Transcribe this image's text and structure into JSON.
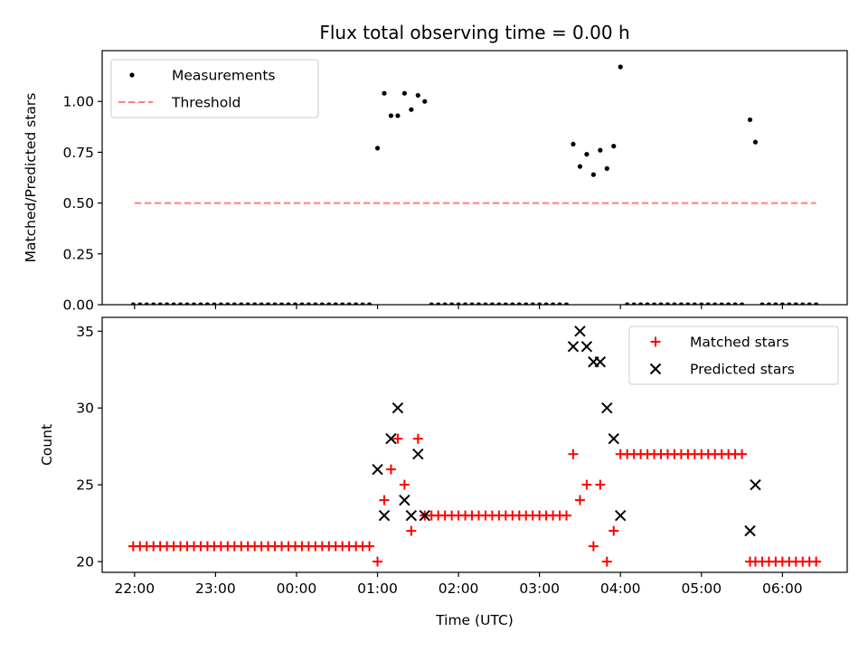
{
  "title": "Flux total observing time = 0.00 h",
  "chart_data": [
    {
      "type": "scatter",
      "ylabel": "Matched/Predicted stars",
      "xlim": [
        "21:36",
        "06:48"
      ],
      "ylim": [
        0,
        1.25
      ],
      "yticks": [
        0,
        0.25,
        0.5,
        0.75,
        1.0
      ],
      "ytick_labels": [
        "0.00",
        "0.25",
        "0.50",
        "0.75",
        "1.00"
      ],
      "legend_placement": "upper-left",
      "series": [
        {
          "name": "Measurements",
          "marker": "dot",
          "color": "#000000",
          "points": [
            [
              "21:59",
              0
            ],
            [
              "22:04",
              0
            ],
            [
              "22:09",
              0
            ],
            [
              "22:14",
              0
            ],
            [
              "22:19",
              0
            ],
            [
              "22:24",
              0
            ],
            [
              "22:29",
              0
            ],
            [
              "22:34",
              0
            ],
            [
              "22:39",
              0
            ],
            [
              "22:44",
              0
            ],
            [
              "22:49",
              0
            ],
            [
              "22:54",
              0
            ],
            [
              "22:59",
              0
            ],
            [
              "23:04",
              0
            ],
            [
              "23:09",
              0
            ],
            [
              "23:14",
              0
            ],
            [
              "23:19",
              0
            ],
            [
              "23:24",
              0
            ],
            [
              "23:29",
              0
            ],
            [
              "23:34",
              0
            ],
            [
              "23:39",
              0
            ],
            [
              "23:44",
              0
            ],
            [
              "23:49",
              0
            ],
            [
              "23:54",
              0
            ],
            [
              "23:59",
              0
            ],
            [
              "00:04",
              0
            ],
            [
              "00:09",
              0
            ],
            [
              "00:14",
              0
            ],
            [
              "00:19",
              0
            ],
            [
              "00:24",
              0
            ],
            [
              "00:29",
              0
            ],
            [
              "00:34",
              0
            ],
            [
              "00:39",
              0
            ],
            [
              "00:44",
              0
            ],
            [
              "00:49",
              0
            ],
            [
              "00:54",
              0
            ],
            [
              "01:00",
              0.77
            ],
            [
              "01:05",
              1.04
            ],
            [
              "01:10",
              0.93
            ],
            [
              "01:15",
              0.93
            ],
            [
              "01:20",
              1.04
            ],
            [
              "01:25",
              0.96
            ],
            [
              "01:30",
              1.03
            ],
            [
              "01:35",
              1.0
            ],
            [
              "01:40",
              0
            ],
            [
              "01:45",
              0
            ],
            [
              "01:50",
              0
            ],
            [
              "01:55",
              0
            ],
            [
              "02:00",
              0
            ],
            [
              "02:05",
              0
            ],
            [
              "02:10",
              0
            ],
            [
              "02:15",
              0
            ],
            [
              "02:20",
              0
            ],
            [
              "02:25",
              0
            ],
            [
              "02:30",
              0
            ],
            [
              "02:35",
              0
            ],
            [
              "02:40",
              0
            ],
            [
              "02:45",
              0
            ],
            [
              "02:50",
              0
            ],
            [
              "02:55",
              0
            ],
            [
              "03:00",
              0
            ],
            [
              "03:05",
              0
            ],
            [
              "03:10",
              0
            ],
            [
              "03:15",
              0
            ],
            [
              "03:20",
              0
            ],
            [
              "03:25",
              0.79
            ],
            [
              "03:30",
              0.68
            ],
            [
              "03:35",
              0.74
            ],
            [
              "03:40",
              0.64
            ],
            [
              "03:45",
              0.76
            ],
            [
              "03:50",
              0.67
            ],
            [
              "03:55",
              0.78
            ],
            [
              "04:00",
              1.17
            ],
            [
              "04:05",
              0
            ],
            [
              "04:10",
              0
            ],
            [
              "04:15",
              0
            ],
            [
              "04:20",
              0
            ],
            [
              "04:25",
              0
            ],
            [
              "04:30",
              0
            ],
            [
              "04:35",
              0
            ],
            [
              "04:40",
              0
            ],
            [
              "04:45",
              0
            ],
            [
              "04:50",
              0
            ],
            [
              "04:55",
              0
            ],
            [
              "05:00",
              0
            ],
            [
              "05:05",
              0
            ],
            [
              "05:10",
              0
            ],
            [
              "05:15",
              0
            ],
            [
              "05:20",
              0
            ],
            [
              "05:25",
              0
            ],
            [
              "05:30",
              0
            ],
            [
              "05:36",
              0.91
            ],
            [
              "05:40",
              0.8
            ],
            [
              "05:45",
              0
            ],
            [
              "05:50",
              0
            ],
            [
              "05:55",
              0
            ],
            [
              "06:00",
              0
            ],
            [
              "06:05",
              0
            ],
            [
              "06:10",
              0
            ],
            [
              "06:15",
              0
            ],
            [
              "06:20",
              0
            ],
            [
              "06:25",
              0
            ]
          ]
        },
        {
          "name": "Threshold",
          "type": "line",
          "style": "dashed",
          "color": "#ff7f7f",
          "points": [
            [
              "22:00",
              0.5
            ],
            [
              "06:25",
              0.5
            ]
          ]
        }
      ]
    },
    {
      "type": "scatter",
      "xlabel": "Time (UTC)",
      "ylabel": "Count",
      "xlim": [
        "21:36",
        "06:48"
      ],
      "ylim": [
        19.3,
        35.9
      ],
      "yticks": [
        20,
        25,
        30,
        35
      ],
      "ytick_labels": [
        "20",
        "25",
        "30",
        "35"
      ],
      "xticks": [
        "22:00",
        "23:00",
        "00:00",
        "01:00",
        "02:00",
        "03:00",
        "04:00",
        "05:00",
        "06:00"
      ],
      "legend_placement": "upper-right",
      "series": [
        {
          "name": "Matched stars",
          "marker": "plus",
          "color": "#ff0000",
          "points": [
            [
              "21:59",
              21
            ],
            [
              "22:04",
              21
            ],
            [
              "22:09",
              21
            ],
            [
              "22:14",
              21
            ],
            [
              "22:19",
              21
            ],
            [
              "22:24",
              21
            ],
            [
              "22:29",
              21
            ],
            [
              "22:34",
              21
            ],
            [
              "22:39",
              21
            ],
            [
              "22:44",
              21
            ],
            [
              "22:49",
              21
            ],
            [
              "22:54",
              21
            ],
            [
              "22:59",
              21
            ],
            [
              "23:04",
              21
            ],
            [
              "23:09",
              21
            ],
            [
              "23:14",
              21
            ],
            [
              "23:19",
              21
            ],
            [
              "23:24",
              21
            ],
            [
              "23:29",
              21
            ],
            [
              "23:34",
              21
            ],
            [
              "23:39",
              21
            ],
            [
              "23:44",
              21
            ],
            [
              "23:49",
              21
            ],
            [
              "23:54",
              21
            ],
            [
              "23:59",
              21
            ],
            [
              "00:04",
              21
            ],
            [
              "00:09",
              21
            ],
            [
              "00:14",
              21
            ],
            [
              "00:19",
              21
            ],
            [
              "00:24",
              21
            ],
            [
              "00:29",
              21
            ],
            [
              "00:34",
              21
            ],
            [
              "00:39",
              21
            ],
            [
              "00:44",
              21
            ],
            [
              "00:49",
              21
            ],
            [
              "00:54",
              21
            ],
            [
              "01:00",
              20
            ],
            [
              "01:05",
              24
            ],
            [
              "01:10",
              26
            ],
            [
              "01:15",
              28
            ],
            [
              "01:20",
              25
            ],
            [
              "01:25",
              22
            ],
            [
              "01:30",
              28
            ],
            [
              "01:35",
              23
            ],
            [
              "01:40",
              23
            ],
            [
              "01:45",
              23
            ],
            [
              "01:50",
              23
            ],
            [
              "01:55",
              23
            ],
            [
              "02:00",
              23
            ],
            [
              "02:05",
              23
            ],
            [
              "02:10",
              23
            ],
            [
              "02:15",
              23
            ],
            [
              "02:20",
              23
            ],
            [
              "02:25",
              23
            ],
            [
              "02:30",
              23
            ],
            [
              "02:35",
              23
            ],
            [
              "02:40",
              23
            ],
            [
              "02:45",
              23
            ],
            [
              "02:50",
              23
            ],
            [
              "02:55",
              23
            ],
            [
              "03:00",
              23
            ],
            [
              "03:05",
              23
            ],
            [
              "03:10",
              23
            ],
            [
              "03:15",
              23
            ],
            [
              "03:20",
              23
            ],
            [
              "03:25",
              27
            ],
            [
              "03:30",
              24
            ],
            [
              "03:35",
              25
            ],
            [
              "03:40",
              21
            ],
            [
              "03:45",
              25
            ],
            [
              "03:50",
              20
            ],
            [
              "03:55",
              22
            ],
            [
              "04:00",
              27
            ],
            [
              "04:05",
              27
            ],
            [
              "04:10",
              27
            ],
            [
              "04:15",
              27
            ],
            [
              "04:20",
              27
            ],
            [
              "04:25",
              27
            ],
            [
              "04:30",
              27
            ],
            [
              "04:35",
              27
            ],
            [
              "04:40",
              27
            ],
            [
              "04:45",
              27
            ],
            [
              "04:50",
              27
            ],
            [
              "04:55",
              27
            ],
            [
              "05:00",
              27
            ],
            [
              "05:05",
              27
            ],
            [
              "05:10",
              27
            ],
            [
              "05:15",
              27
            ],
            [
              "05:20",
              27
            ],
            [
              "05:25",
              27
            ],
            [
              "05:30",
              27
            ],
            [
              "05:36",
              20
            ],
            [
              "05:40",
              20
            ],
            [
              "05:45",
              20
            ],
            [
              "05:50",
              20
            ],
            [
              "05:55",
              20
            ],
            [
              "06:00",
              20
            ],
            [
              "06:05",
              20
            ],
            [
              "06:10",
              20
            ],
            [
              "06:15",
              20
            ],
            [
              "06:20",
              20
            ],
            [
              "06:25",
              20
            ]
          ]
        },
        {
          "name": "Predicted stars",
          "marker": "x",
          "color": "#000000",
          "points": [
            [
              "01:00",
              26
            ],
            [
              "01:05",
              23
            ],
            [
              "01:10",
              28
            ],
            [
              "01:15",
              30
            ],
            [
              "01:20",
              24
            ],
            [
              "01:25",
              23
            ],
            [
              "01:30",
              27
            ],
            [
              "01:35",
              23
            ],
            [
              "03:25",
              34
            ],
            [
              "03:30",
              35
            ],
            [
              "03:35",
              34
            ],
            [
              "03:40",
              33
            ],
            [
              "03:45",
              33
            ],
            [
              "03:50",
              30
            ],
            [
              "03:55",
              28
            ],
            [
              "04:00",
              23
            ],
            [
              "05:36",
              22
            ],
            [
              "05:40",
              25
            ]
          ]
        }
      ]
    }
  ]
}
